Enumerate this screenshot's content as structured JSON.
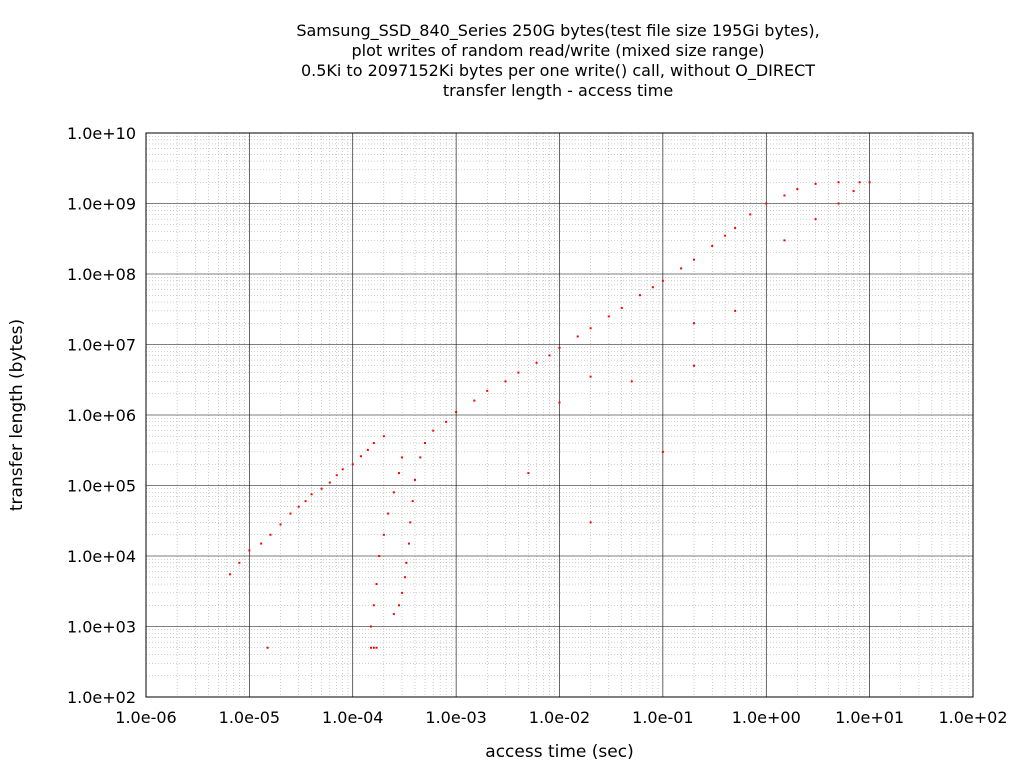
{
  "chart_data": {
    "type": "scatter",
    "title_lines": [
      "Samsung_SSD_840_Series 250G bytes(test file size 195Gi bytes),",
      "plot writes of random read/write (mixed size range)",
      "0.5Ki to 2097152Ki bytes per one write() call, without O_DIRECT",
      "transfer length - access time"
    ],
    "xlabel": "access time (sec)",
    "ylabel": "transfer length (bytes)",
    "x_scale": "log",
    "y_scale": "log",
    "xlim": [
      1e-06,
      100.0
    ],
    "ylim": [
      100.0,
      10000000000.0
    ],
    "x_ticks": [
      "1.0e-06",
      "1.0e-05",
      "1.0e-04",
      "1.0e-03",
      "1.0e-02",
      "1.0e-01",
      "1.0e+00",
      "1.0e+01",
      "1.0e+02"
    ],
    "y_ticks": [
      "1.0e+02",
      "1.0e+03",
      "1.0e+04",
      "1.0e+05",
      "1.0e+06",
      "1.0e+07",
      "1.0e+08",
      "1.0e+09",
      "1.0e+10"
    ],
    "grid": true,
    "legend": "none",
    "series": [
      {
        "color": "#ff0000",
        "marker": "dot",
        "points": [
          [
            6.5e-06,
            5500.0
          ],
          [
            8e-06,
            8000.0
          ],
          [
            1e-05,
            12000.0
          ],
          [
            1.3e-05,
            15000.0
          ],
          [
            1.6e-05,
            20000.0
          ],
          [
            2e-05,
            28000.0
          ],
          [
            2.5e-05,
            40000.0
          ],
          [
            3e-05,
            50000.0
          ],
          [
            3.5e-05,
            60000.0
          ],
          [
            4e-05,
            75000.0
          ],
          [
            5e-05,
            90000.0
          ],
          [
            6e-05,
            110000.0
          ],
          [
            7e-05,
            140000.0
          ],
          [
            8e-05,
            170000.0
          ],
          [
            0.0001,
            200000.0
          ],
          [
            0.00012,
            260000.0
          ],
          [
            0.00014,
            320000.0
          ],
          [
            0.00016,
            400000.0
          ],
          [
            0.0002,
            500000.0
          ],
          [
            1.5e-05,
            500.0
          ],
          [
            0.00015,
            500.0
          ],
          [
            0.00016,
            500.0
          ],
          [
            0.00017,
            500.0
          ],
          [
            0.00015,
            1000.0
          ],
          [
            0.00016,
            2000.0
          ],
          [
            0.00017,
            4000.0
          ],
          [
            0.00018,
            10000.0
          ],
          [
            0.0002,
            20000.0
          ],
          [
            0.00022,
            40000.0
          ],
          [
            0.00025,
            80000.0
          ],
          [
            0.00028,
            150000.0
          ],
          [
            0.0003,
            250000.0
          ],
          [
            0.00025,
            1500.0
          ],
          [
            0.00028,
            2000.0
          ],
          [
            0.0003,
            3000.0
          ],
          [
            0.00032,
            5000.0
          ],
          [
            0.00033,
            8000.0
          ],
          [
            0.00035,
            15000.0
          ],
          [
            0.00036,
            30000.0
          ],
          [
            0.00038,
            60000.0
          ],
          [
            0.0004,
            120000.0
          ],
          [
            0.00045,
            250000.0
          ],
          [
            0.0005,
            400000.0
          ],
          [
            0.0006,
            600000.0
          ],
          [
            0.0008,
            800000.0
          ],
          [
            0.001,
            1100000.0
          ],
          [
            0.0015,
            1600000.0
          ],
          [
            0.002,
            2200000.0
          ],
          [
            0.003,
            3000000.0
          ],
          [
            0.004,
            4000000.0
          ],
          [
            0.006,
            5500000.0
          ],
          [
            0.008,
            7000000.0
          ],
          [
            0.01,
            9000000.0
          ],
          [
            0.015,
            13000000.0
          ],
          [
            0.02,
            17000000.0
          ],
          [
            0.03,
            25000000.0
          ],
          [
            0.04,
            33000000.0
          ],
          [
            0.06,
            50000000.0
          ],
          [
            0.08,
            65000000.0
          ],
          [
            0.1,
            80000000.0
          ],
          [
            0.15,
            120000000.0
          ],
          [
            0.2,
            160000000.0
          ],
          [
            0.3,
            250000000.0
          ],
          [
            0.4,
            350000000.0
          ],
          [
            0.5,
            450000000.0
          ],
          [
            0.7,
            700000000.0
          ],
          [
            1,
            1000000000.0
          ],
          [
            1.5,
            1300000000.0
          ],
          [
            2,
            1600000000.0
          ],
          [
            3,
            1900000000.0
          ],
          [
            5,
            2000000000.0
          ],
          [
            8,
            2000000000.0
          ],
          [
            10.0,
            2000000000.0
          ],
          [
            1.5,
            300000000.0
          ],
          [
            3,
            600000000.0
          ],
          [
            5,
            1000000000.0
          ],
          [
            7,
            1500000000.0
          ],
          [
            0.2,
            20000000.0
          ],
          [
            0.2,
            5000000.0
          ],
          [
            0.05,
            3000000.0
          ],
          [
            0.02,
            3500000.0
          ],
          [
            0.01,
            1500000.0
          ],
          [
            0.005,
            150000.0
          ],
          [
            0.02,
            30000.0
          ],
          [
            0.1,
            300000.0
          ],
          [
            0.5,
            30000000.0
          ]
        ]
      }
    ]
  }
}
